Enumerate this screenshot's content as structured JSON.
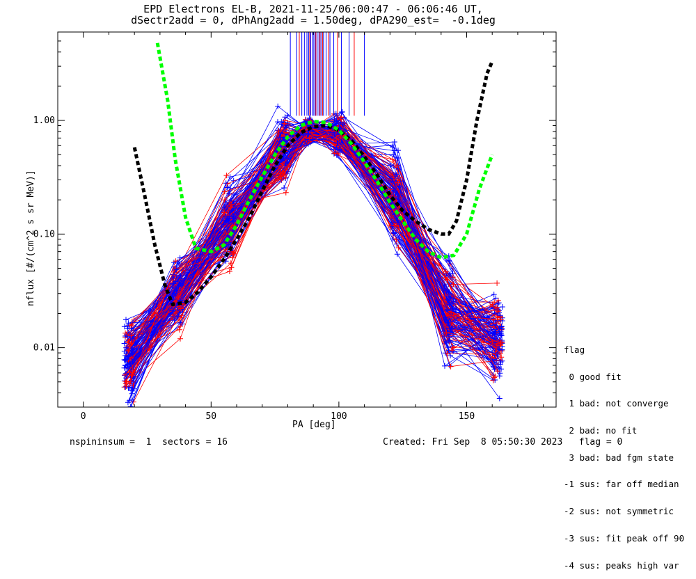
{
  "title_line1": "EPD Electrons EL-B, 2021-11-25/06:00:47 - 06:06:46 UT,",
  "title_line2": "dSectr2add = 0, dPhAng2add = 1.50deg, dPA290_est=  -0.1deg",
  "footer": {
    "left": "nspininsum =  1  sectors = 16",
    "right": "Created: Fri Sep  8 05:50:30 2023   flag = 0"
  },
  "legend": {
    "title": "flag",
    "items": [
      " 0 good fit",
      " 1 bad: not converge",
      " 2 bad: no fit",
      " 3 bad: bad fgm state",
      "-1 sus: far off median",
      "-2 sus: not symmetric",
      "-3 sus: fit peak off 90",
      "-4 sus: peaks high var"
    ]
  },
  "colors": {
    "blue": "#0000ff",
    "red": "#ff0000",
    "green": "#00ff00",
    "black": "#000000"
  },
  "chart_data": {
    "type": "line",
    "xlabel": "PA [deg]",
    "ylabel": "nflux [#/(cm^2 s sr MeV)]",
    "xlim": [
      -10,
      185
    ],
    "ylim": [
      0.003,
      6
    ],
    "yscale": "log",
    "xticks": [
      0,
      50,
      100,
      150
    ],
    "xtick_labels": [
      "0",
      "50",
      "100",
      "150"
    ],
    "yticks": [
      0.01,
      0.1,
      1.0
    ],
    "ytick_labels": [
      "0.01",
      "0.10",
      "1.00"
    ],
    "pa_bins": [
      18,
      37,
      57,
      78,
      88,
      100,
      122,
      143,
      162
    ],
    "curves": [
      {
        "color": "black",
        "style": "dashed",
        "x": [
          20,
          24,
          28,
          32,
          35,
          40,
          45,
          50,
          55,
          60,
          65,
          70,
          75,
          80,
          85,
          90,
          95,
          100,
          105,
          110,
          115,
          120,
          125,
          130,
          135,
          140,
          143,
          146,
          150,
          154,
          158,
          160
        ],
        "y": [
          0.58,
          0.22,
          0.08,
          0.035,
          0.024,
          0.025,
          0.031,
          0.042,
          0.06,
          0.09,
          0.14,
          0.24,
          0.4,
          0.6,
          0.78,
          0.88,
          0.9,
          0.82,
          0.66,
          0.48,
          0.33,
          0.22,
          0.16,
          0.13,
          0.11,
          0.1,
          0.1,
          0.13,
          0.3,
          1.0,
          2.6,
          3.3
        ]
      },
      {
        "color": "green",
        "style": "dashed",
        "x": [
          29,
          33,
          36,
          40,
          44,
          50,
          55,
          60,
          65,
          70,
          75,
          80,
          85,
          90,
          95,
          100,
          105,
          110,
          115,
          120,
          125,
          130,
          135,
          140,
          145,
          150,
          155,
          160
        ],
        "y": [
          4.8,
          1.5,
          0.45,
          0.14,
          0.075,
          0.07,
          0.08,
          0.12,
          0.2,
          0.32,
          0.5,
          0.72,
          0.9,
          0.98,
          0.96,
          0.82,
          0.62,
          0.43,
          0.29,
          0.19,
          0.13,
          0.09,
          0.07,
          0.062,
          0.065,
          0.1,
          0.25,
          0.5
        ]
      }
    ],
    "vlines": {
      "y_bottom": 1.1,
      "blue_x": [
        81,
        83.5,
        85.5,
        86.5,
        87.5,
        88.2,
        89,
        89.6,
        90.2,
        90.8,
        91.5,
        92.2,
        93,
        94,
        95,
        96.5,
        98,
        101,
        104,
        110
      ],
      "red_x": [
        84.5,
        88.6,
        91,
        92.6,
        93.6,
        96,
        99.5,
        106
      ]
    },
    "traces": {
      "count": 150,
      "blue_fraction": 0.65,
      "peak_median": 0.8,
      "level_37": 0.03,
      "level_18": 0.008,
      "level_57": 0.12,
      "level_122": 0.2,
      "level_143": 0.02,
      "level_162": 0.012
    }
  }
}
